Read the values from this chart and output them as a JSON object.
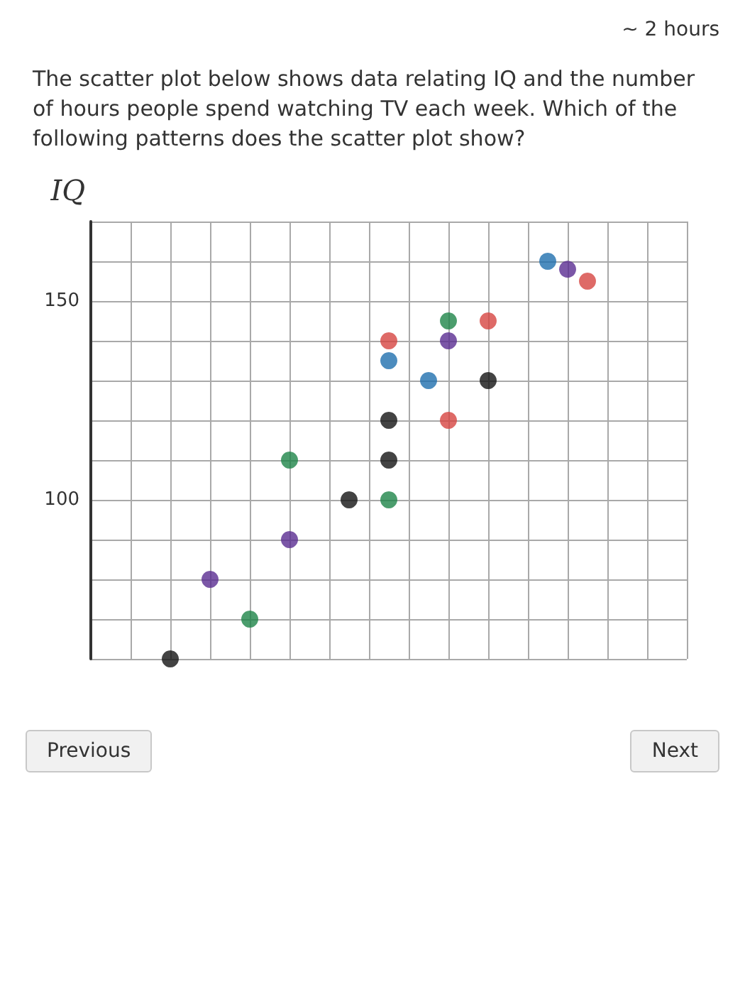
{
  "chart_data": {
    "type": "scatter",
    "title": "The scatter plot below shows data relating IQ and the number of hours people spend watching TV each week. Which of the following patterns does the scatter plot show?",
    "ylabel": "IQ",
    "categories": [
      null,
      null,
      null,
      null,
      null,
      null,
      null,
      null,
      null,
      null,
      null,
      null,
      null,
      null,
      null,
      null,
      null,
      null,
      null,
      null,
      null,
      null,
      null,
      null,
      null,
      null,
      null,
      null,
      null,
      null,
      null
    ],
    "series": [
      {
        "color": "#141414",
        "values": [
          null,
          null,
          null,
          null,
          60,
          null,
          null,
          null,
          null,
          null,
          null,
          null,
          null,
          100,
          null,
          110,
          null,
          null,
          null,
          null,
          130,
          null,
          null,
          null,
          null,
          null,
          null,
          null,
          null,
          null,
          null
        ]
      },
      {
        "color": "#141414",
        "values": [
          null,
          null,
          null,
          null,
          null,
          null,
          null,
          null,
          null,
          null,
          null,
          null,
          null,
          null,
          null,
          120,
          null,
          null,
          null,
          null,
          null,
          null,
          null,
          null,
          null,
          null,
          null,
          null,
          null,
          null,
          null
        ]
      },
      {
        "color": "#5a2d91",
        "values": [
          null,
          null,
          null,
          null,
          null,
          null,
          80,
          null,
          null,
          null,
          90,
          null,
          null,
          null,
          null,
          null,
          null,
          null,
          140,
          null,
          null,
          null,
          null,
          null,
          158,
          null,
          null,
          null,
          null,
          null,
          null
        ]
      },
      {
        "color": "#1e8449",
        "values": [
          null,
          null,
          null,
          null,
          null,
          null,
          null,
          null,
          70,
          null,
          110,
          null,
          null,
          null,
          null,
          100,
          null,
          null,
          145,
          null,
          null,
          null,
          null,
          null,
          null,
          null,
          null,
          null,
          null,
          null,
          null
        ]
      },
      {
        "color": "#1f6fae",
        "values": [
          null,
          null,
          null,
          null,
          null,
          null,
          null,
          null,
          null,
          null,
          null,
          null,
          null,
          null,
          null,
          135,
          null,
          130,
          null,
          null,
          null,
          null,
          null,
          160,
          null,
          null,
          null,
          null,
          null,
          null,
          null
        ]
      },
      {
        "color": "#d64541",
        "values": [
          null,
          null,
          null,
          null,
          null,
          null,
          null,
          null,
          null,
          null,
          null,
          null,
          null,
          null,
          null,
          140,
          null,
          null,
          120,
          null,
          145,
          null,
          null,
          null,
          null,
          155,
          null,
          null,
          null,
          null,
          null
        ]
      }
    ],
    "ylim": [
      60,
      170
    ],
    "yticks": [
      {
        "value": 60,
        "label": null
      },
      {
        "value": 70,
        "label": null
      },
      {
        "value": 80,
        "label": null
      },
      {
        "value": 90,
        "label": null
      },
      100,
      {
        "value": 110,
        "label": null
      },
      {
        "value": 120,
        "label": null
      },
      {
        "value": 130,
        "label": null
      },
      {
        "value": 140,
        "label": null
      },
      150,
      {
        "value": 160,
        "label": null
      },
      {
        "value": 170,
        "label": null
      }
    ],
    "grid": true,
    "marker": "circle",
    "tick_labels": "y",
    "annotations": [
      "~ 2 hours",
      "Previous",
      "Next"
    ]
  }
}
